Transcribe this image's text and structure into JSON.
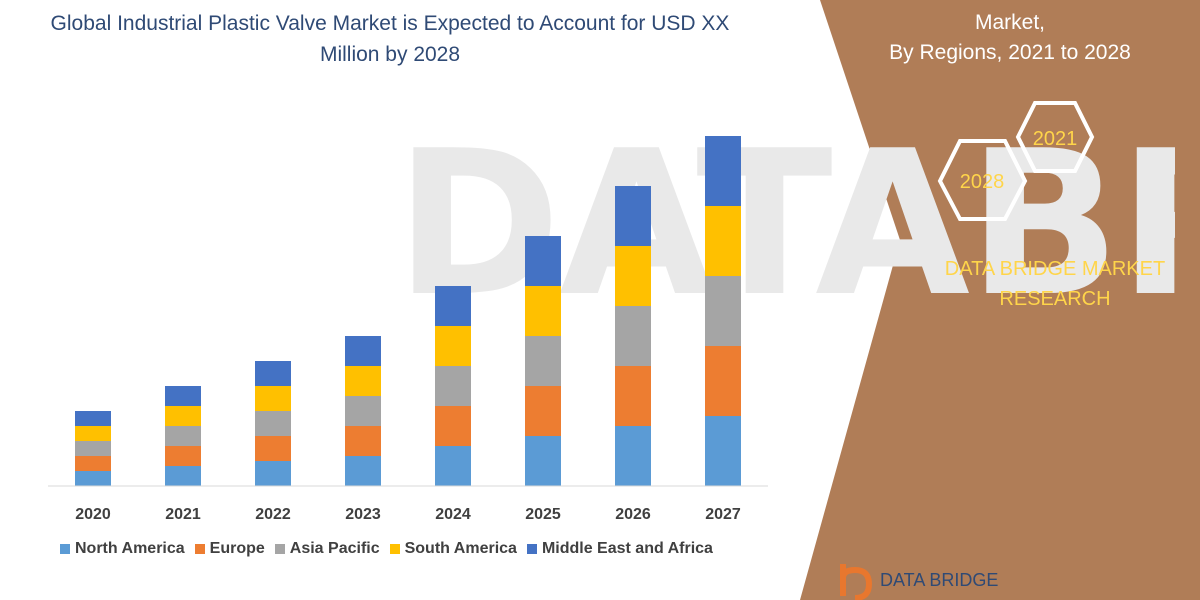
{
  "chart_data": {
    "type": "bar",
    "stacked": true,
    "title": "Global Industrial Plastic Valve Market is Expected to Account for USD XX Million by 2028",
    "categories": [
      "2020",
      "2021",
      "2022",
      "2023",
      "2024",
      "2025",
      "2026",
      "2027"
    ],
    "series": [
      {
        "name": "North America",
        "color": "#5b9bd5",
        "values": [
          15,
          20,
          25,
          30,
          40,
          50,
          60,
          70
        ]
      },
      {
        "name": "Europe",
        "color": "#ed7d31",
        "values": [
          15,
          20,
          25,
          30,
          40,
          50,
          60,
          70
        ]
      },
      {
        "name": "Asia Pacific",
        "color": "#a5a5a5",
        "values": [
          15,
          20,
          25,
          30,
          40,
          50,
          60,
          70
        ]
      },
      {
        "name": "South America",
        "color": "#ffc000",
        "values": [
          15,
          20,
          25,
          30,
          40,
          50,
          60,
          70
        ]
      },
      {
        "name": "Middle East and Africa",
        "color": "#4472c4",
        "values": [
          15,
          20,
          25,
          30,
          40,
          50,
          60,
          70
        ]
      }
    ],
    "legend_position": "bottom",
    "grid": false
  },
  "side_panel": {
    "subtitle_line1": "Market,",
    "subtitle_line2": "By Regions, 2021 to 2028",
    "hex_year_start": "2021",
    "hex_year_end": "2028",
    "brand_line1": "DATA BRIDGE MARKET",
    "brand_line2": "RESEARCH",
    "panel_color": "#b07d57",
    "accent_color": "#ffd54a"
  },
  "logo": {
    "text": "DATA BRIDGE"
  },
  "watermark": {
    "text": "DATABRIDGE"
  }
}
